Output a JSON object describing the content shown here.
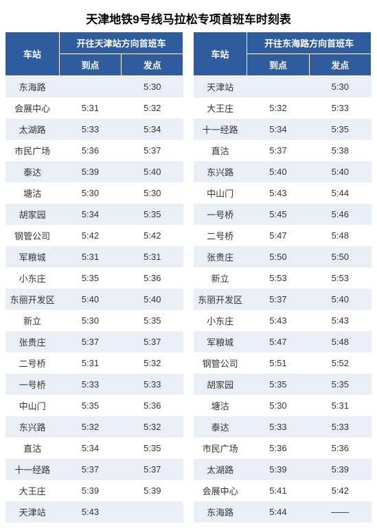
{
  "title": "天津地铁9号线马拉松专项首班车时刻表",
  "headers": {
    "station": "车站",
    "left_dir": "开往天津站方向首班车",
    "right_dir": "开往东海路方向首班车",
    "arrive": "到点",
    "depart": "发点"
  },
  "colors": {
    "header_bg": "#2e5c9e",
    "header_fg": "#ffffff",
    "stripe_bg": "#eaeff7",
    "plain_bg": "#ffffff"
  },
  "rows": [
    {
      "l_st": "东海路",
      "l_arr": "",
      "l_dep": "5:30",
      "r_st": "天津站",
      "r_arr": "",
      "r_dep": "5:30"
    },
    {
      "l_st": "会展中心",
      "l_arr": "5:31",
      "l_dep": "5:32",
      "r_st": "大王庄",
      "r_arr": "5:32",
      "r_dep": "5:33"
    },
    {
      "l_st": "太湖路",
      "l_arr": "5:33",
      "l_dep": "5:34",
      "r_st": "十一经路",
      "r_arr": "5:34",
      "r_dep": "5:35"
    },
    {
      "l_st": "市民广场",
      "l_arr": "5:36",
      "l_dep": "5:37",
      "r_st": "直沽",
      "r_arr": "5:37",
      "r_dep": "5:38"
    },
    {
      "l_st": "泰达",
      "l_arr": "5:39",
      "l_dep": "5:40",
      "r_st": "东兴路",
      "r_arr": "5:40",
      "r_dep": "5:40"
    },
    {
      "l_st": "塘沽",
      "l_arr": "5:30",
      "l_dep": "5:30",
      "r_st": "中山门",
      "r_arr": "5:43",
      "r_dep": "5:44"
    },
    {
      "l_st": "胡家园",
      "l_arr": "5:34",
      "l_dep": "5:35",
      "r_st": "一号桥",
      "r_arr": "5:45",
      "r_dep": "5:46"
    },
    {
      "l_st": "钢管公司",
      "l_arr": "5:42",
      "l_dep": "5:42",
      "r_st": "二号桥",
      "r_arr": "5:47",
      "r_dep": "5:48"
    },
    {
      "l_st": "军粮城",
      "l_arr": "5:31",
      "l_dep": "5:31",
      "r_st": "张贵庄",
      "r_arr": "5:50",
      "r_dep": "5:50"
    },
    {
      "l_st": "小东庄",
      "l_arr": "5:35",
      "l_dep": "5:36",
      "r_st": "新立",
      "r_arr": "5:53",
      "r_dep": "5:53"
    },
    {
      "l_st": "东丽开发区",
      "l_arr": "5:40",
      "l_dep": "5:40",
      "r_st": "东丽开发区",
      "r_arr": "5:37",
      "r_dep": "5:40"
    },
    {
      "l_st": "新立",
      "l_arr": "5:30",
      "l_dep": "5:35",
      "r_st": "小东庄",
      "r_arr": "5:43",
      "r_dep": "5:43"
    },
    {
      "l_st": "张贵庄",
      "l_arr": "5:37",
      "l_dep": "5:37",
      "r_st": "军粮城",
      "r_arr": "5:47",
      "r_dep": "5:48"
    },
    {
      "l_st": "二号桥",
      "l_arr": "5:31",
      "l_dep": "5:32",
      "r_st": "钢管公司",
      "r_arr": "5:51",
      "r_dep": "5:52"
    },
    {
      "l_st": "一号桥",
      "l_arr": "5:33",
      "l_dep": "5:33",
      "r_st": "胡家园",
      "r_arr": "5:35",
      "r_dep": "5:35"
    },
    {
      "l_st": "中山门",
      "l_arr": "5:35",
      "l_dep": "5:36",
      "r_st": "塘沽",
      "r_arr": "5:30",
      "r_dep": "5:31"
    },
    {
      "l_st": "东兴路",
      "l_arr": "5:32",
      "l_dep": "5:32",
      "r_st": "泰达",
      "r_arr": "5:33",
      "r_dep": "5:33"
    },
    {
      "l_st": "直沽",
      "l_arr": "5:34",
      "l_dep": "5:35",
      "r_st": "市民广场",
      "r_arr": "5:36",
      "r_dep": "5:36"
    },
    {
      "l_st": "十一经路",
      "l_arr": "5:37",
      "l_dep": "5:37",
      "r_st": "太湖路",
      "r_arr": "5:39",
      "r_dep": "5:39"
    },
    {
      "l_st": "大王庄",
      "l_arr": "5:39",
      "l_dep": "5:39",
      "r_st": "会展中心",
      "r_arr": "5:41",
      "r_dep": "5:42"
    },
    {
      "l_st": "天津站",
      "l_arr": "5:43",
      "l_dep": "",
      "r_st": "东海路",
      "r_arr": "5:44",
      "r_dep": "——"
    }
  ]
}
